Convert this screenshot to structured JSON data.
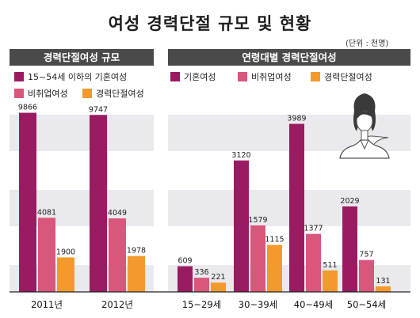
{
  "title": "여성 경력단절 규모 및 현황",
  "unit": "(단위 : 천명)",
  "colors": {
    "married": "#9b1b62",
    "unemployed": "#d9577a",
    "career_break": "#f39a2e",
    "header_bg": "#4a4a4a",
    "band": "#e9e9ee"
  },
  "chart_data": [
    {
      "type": "bar",
      "title": "경력단절여성 규모",
      "categories": [
        "2011년",
        "2012년"
      ],
      "series": [
        {
          "name": "15~54세 이하의 기혼여성",
          "values": [
            9866,
            9747
          ]
        },
        {
          "name": "비취업여성",
          "values": [
            4081,
            4049
          ]
        },
        {
          "name": "경력단절여성",
          "values": [
            1900,
            1978
          ]
        }
      ],
      "ylim": [
        0,
        10500
      ],
      "grid": false,
      "legend": "top"
    },
    {
      "type": "bar",
      "title": "연령대별 경력단절여성",
      "categories": [
        "15~29세",
        "30~39세",
        "40~49세",
        "50~54세"
      ],
      "series": [
        {
          "name": "기혼여성",
          "values": [
            609,
            3120,
            3989,
            2029
          ]
        },
        {
          "name": "비취업여성",
          "values": [
            336,
            1579,
            1377,
            757
          ]
        },
        {
          "name": "경력단절여성",
          "values": [
            221,
            1115,
            511,
            131
          ]
        }
      ],
      "ylim": [
        0,
        4300
      ],
      "grid": false,
      "legend": "top"
    }
  ]
}
